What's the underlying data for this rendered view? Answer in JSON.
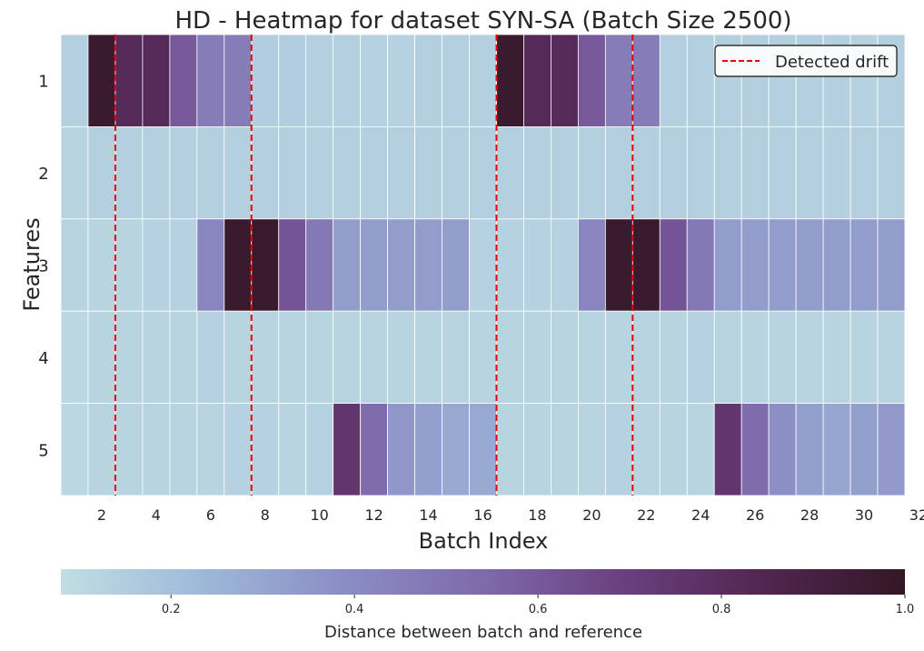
{
  "chart_data": {
    "type": "heatmap",
    "title": "HD - Heatmap for dataset SYN-SA (Batch Size 2500)",
    "xlabel": "Batch Index",
    "ylabel": "Features",
    "x": [
      1,
      2,
      3,
      4,
      5,
      6,
      7,
      8,
      9,
      10,
      11,
      12,
      13,
      14,
      15,
      16,
      17,
      18,
      19,
      20,
      21,
      22,
      23,
      24,
      25,
      26,
      27,
      28,
      29,
      30,
      31
    ],
    "xticks": [
      2,
      4,
      6,
      8,
      10,
      12,
      14,
      16,
      18,
      20,
      22,
      24,
      26,
      28,
      30,
      32
    ],
    "rows": [
      "1",
      "2",
      "3",
      "4",
      "5"
    ],
    "values": [
      [
        0.14,
        0.97,
        0.82,
        0.82,
        0.6,
        0.46,
        0.46,
        0.15,
        0.15,
        0.14,
        0.14,
        0.13,
        0.13,
        0.14,
        0.14,
        0.14,
        0.97,
        0.82,
        0.82,
        0.6,
        0.46,
        0.46,
        0.14,
        0.14,
        0.14,
        0.14,
        0.14,
        0.14,
        0.14,
        0.13,
        0.14
      ],
      [
        0.12,
        0.14,
        0.14,
        0.14,
        0.14,
        0.14,
        0.14,
        0.14,
        0.14,
        0.14,
        0.14,
        0.14,
        0.14,
        0.14,
        0.14,
        0.14,
        0.14,
        0.14,
        0.14,
        0.14,
        0.14,
        0.14,
        0.14,
        0.14,
        0.14,
        0.14,
        0.14,
        0.14,
        0.14,
        0.14,
        0.14
      ],
      [
        0.12,
        0.12,
        0.12,
        0.13,
        0.13,
        0.42,
        0.97,
        0.97,
        0.62,
        0.48,
        0.33,
        0.33,
        0.33,
        0.33,
        0.33,
        0.13,
        0.13,
        0.13,
        0.13,
        0.42,
        0.97,
        0.97,
        0.62,
        0.48,
        0.33,
        0.33,
        0.33,
        0.33,
        0.33,
        0.33,
        0.33
      ],
      [
        0.11,
        0.12,
        0.12,
        0.12,
        0.12,
        0.13,
        0.12,
        0.12,
        0.12,
        0.12,
        0.12,
        0.12,
        0.12,
        0.12,
        0.12,
        0.12,
        0.12,
        0.12,
        0.12,
        0.12,
        0.12,
        0.12,
        0.12,
        0.13,
        0.12,
        0.12,
        0.12,
        0.12,
        0.12,
        0.12,
        0.12
      ],
      [
        0.11,
        0.12,
        0.12,
        0.12,
        0.12,
        0.12,
        0.13,
        0.13,
        0.12,
        0.13,
        0.75,
        0.53,
        0.35,
        0.32,
        0.29,
        0.29,
        0.12,
        0.12,
        0.12,
        0.12,
        0.13,
        0.12,
        0.12,
        0.12,
        0.75,
        0.53,
        0.38,
        0.32,
        0.3,
        0.32,
        0.34
      ]
    ],
    "drift_lines": [
      2.5,
      7.5,
      16.5,
      21.5
    ],
    "legend": {
      "label": "Detected drift",
      "placement": "upper right",
      "color": "#ee0000"
    },
    "colorbar": {
      "label": "Distance between batch and reference",
      "range": [
        0.08,
        1.0
      ],
      "ticks": [
        "0.2",
        "0.4",
        "0.6",
        "0.8",
        "1.0"
      ],
      "colormap_stops": [
        "#c2dee4",
        "#9eb9d8",
        "#8b8dc5",
        "#7f6aaa",
        "#6a3f7f",
        "#512650",
        "#331726"
      ]
    },
    "grid": false,
    "cell_border_color": "#ffffff"
  }
}
